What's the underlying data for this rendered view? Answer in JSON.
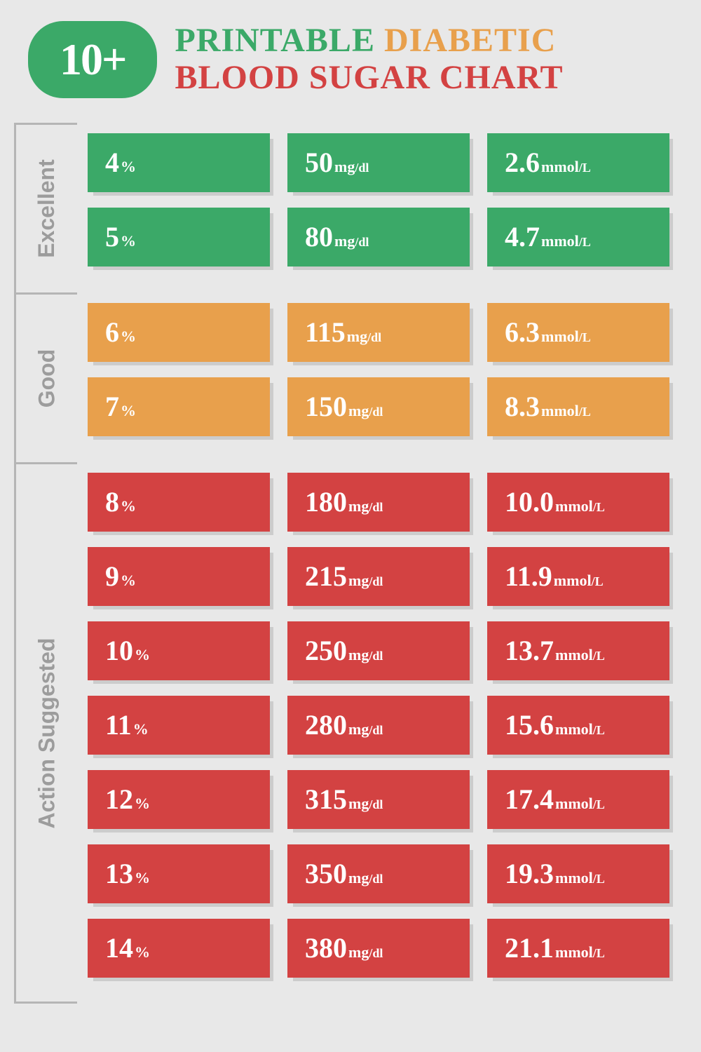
{
  "badge": "10+",
  "title_line1_parts": [
    {
      "text": "PRINTABLE ",
      "color": "#3ba968"
    },
    {
      "text": "DIABETIC",
      "color": "#e8a04c"
    }
  ],
  "title_line2": "BLOOD SUGAR CHART",
  "title_line2_color": "#d34242",
  "colors": {
    "excellent": "#3ba968",
    "good": "#e8a04c",
    "action": "#d34242",
    "label": "#9c9c9c",
    "background": "#e8e8e8"
  },
  "groups": [
    {
      "label": "Excellent",
      "color": "#3ba968",
      "rows": [
        {
          "percent": "4",
          "mgdl": "50",
          "mmol": "2.6"
        },
        {
          "percent": "5",
          "mgdl": "80",
          "mmol": "4.7"
        }
      ]
    },
    {
      "label": "Good",
      "color": "#e8a04c",
      "rows": [
        {
          "percent": "6",
          "mgdl": "115",
          "mmol": "6.3"
        },
        {
          "percent": "7",
          "mgdl": "150",
          "mmol": "8.3"
        }
      ]
    },
    {
      "label": "Action Suggested",
      "color": "#d34242",
      "rows": [
        {
          "percent": "8",
          "mgdl": "180",
          "mmol": "10.0"
        },
        {
          "percent": "9",
          "mgdl": "215",
          "mmol": "11.9"
        },
        {
          "percent": "10",
          "mgdl": "250",
          "mmol": "13.7"
        },
        {
          "percent": "11",
          "mgdl": "280",
          "mmol": "15.6"
        },
        {
          "percent": "12",
          "mgdl": "315",
          "mmol": "17.4"
        },
        {
          "percent": "13",
          "mgdl": "350",
          "mmol": "19.3"
        },
        {
          "percent": "14",
          "mgdl": "380",
          "mmol": "21.1"
        }
      ]
    }
  ],
  "units": {
    "percent": "%",
    "mgdl_main": "mg",
    "mgdl_sub": "/dl",
    "mmol_main": "mmol",
    "mmol_sub": "/L"
  }
}
